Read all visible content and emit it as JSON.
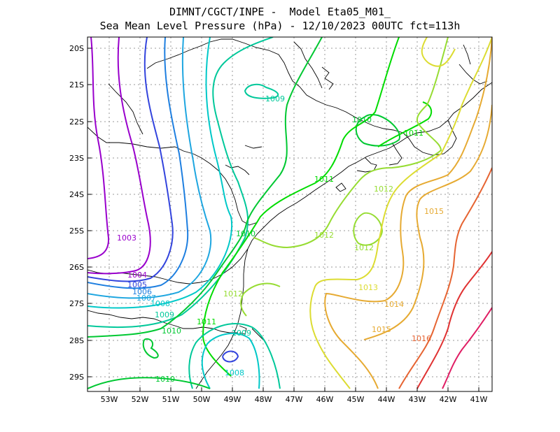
{
  "title": {
    "line1": "DIMNT/CGCT/INPE -  Model Eta05_M01_",
    "line2": "Sea Mean Level Pressure (hPa) - 12/10/2023 00UTC fct=113h"
  },
  "axes": {
    "lat_ticks": [
      "20S",
      "21S",
      "22S",
      "23S",
      "24S",
      "25S",
      "26S",
      "27S",
      "28S",
      "29S"
    ],
    "lon_ticks": [
      "53W",
      "52W",
      "51W",
      "50W",
      "49W",
      "48W",
      "47W",
      "46W",
      "45W",
      "44W",
      "43W",
      "42W",
      "41W"
    ]
  },
  "contour_labels": [
    {
      "text": "1003",
      "color": "#9900cc"
    },
    {
      "text": "1004",
      "color": "#9900cc"
    },
    {
      "text": "1005",
      "color": "#3344dd"
    },
    {
      "text": "1006",
      "color": "#1e7fe0"
    },
    {
      "text": "1007",
      "color": "#1ea6e0"
    },
    {
      "text": "1008",
      "color": "#00c8c8"
    },
    {
      "text": "1008",
      "color": "#00c8c8"
    },
    {
      "text": "1009",
      "color": "#00c89a"
    },
    {
      "text": "1009",
      "color": "#00c89a"
    },
    {
      "text": "1009",
      "color": "#00c89a"
    },
    {
      "text": "1010",
      "color": "#00c832"
    },
    {
      "text": "1010",
      "color": "#00c832"
    },
    {
      "text": "1010",
      "color": "#00c832"
    },
    {
      "text": "1010",
      "color": "#00c832"
    },
    {
      "text": "1011",
      "color": "#00dc00"
    },
    {
      "text": "1011",
      "color": "#00dc00"
    },
    {
      "text": "1011",
      "color": "#00dc00"
    },
    {
      "text": "1012",
      "color": "#96dc32"
    },
    {
      "text": "1012",
      "color": "#96dc32"
    },
    {
      "text": "1012",
      "color": "#96dc32"
    },
    {
      "text": "1012",
      "color": "#96dc32"
    },
    {
      "text": "1013",
      "color": "#dcdc32"
    },
    {
      "text": "1014",
      "color": "#e6aa32"
    },
    {
      "text": "1015",
      "color": "#e6aa32"
    },
    {
      "text": "1015",
      "color": "#e6aa32"
    },
    {
      "text": "1016",
      "color": "#e66432"
    }
  ],
  "colors": {
    "grid": "#9a9a9a",
    "coast": "#000000"
  }
}
